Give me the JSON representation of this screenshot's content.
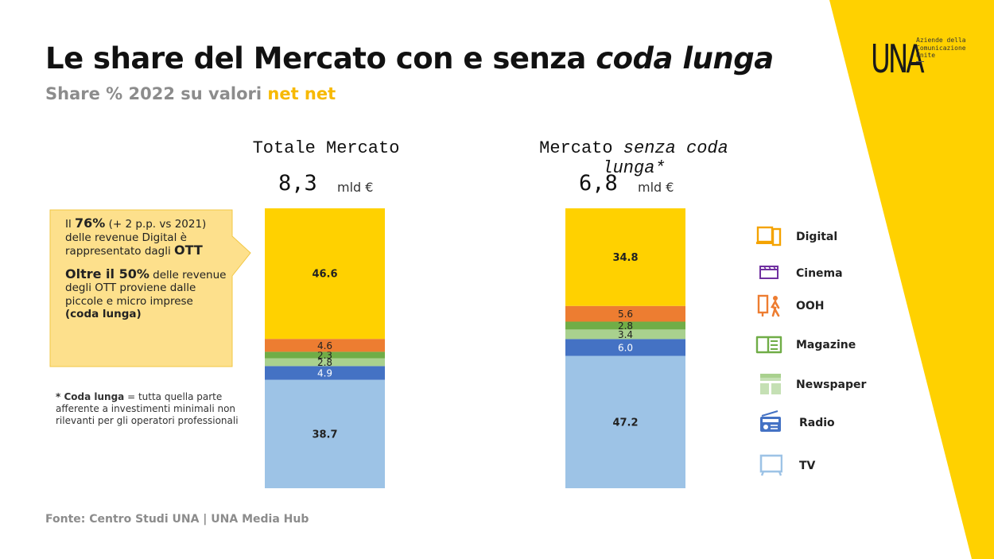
{
  "title_plain": "Le share del Mercato con e senza ",
  "title_italic": "coda lunga",
  "subtitle_plain": "Share % 2022 su valori ",
  "subtitle_highlight": "net net",
  "logo": {
    "mark": "UNA",
    "text": "Aziende della\nComunicazione\nUnite"
  },
  "colors": {
    "accent_yellow": "#ffd100",
    "highlight_text": "#f7b900",
    "callout_fill": "#fde08c"
  },
  "chart_data": [
    {
      "type": "bar",
      "stacked": true,
      "title": "Totale Mercato",
      "total_value": "8,3",
      "total_unit": "mld €",
      "segments": [
        {
          "name": "TV",
          "value": 38.7,
          "label": "38.7",
          "color": "#9dc3e6"
        },
        {
          "name": "Radio",
          "value": 4.9,
          "label": "4.9",
          "color": "#4472c4"
        },
        {
          "name": "Newspaper",
          "value": 2.8,
          "label": "2.8",
          "color": "#a9d18e"
        },
        {
          "name": "Magazine",
          "value": 2.3,
          "label": "2.3",
          "color": "#70ad47"
        },
        {
          "name": "OOH",
          "value": 4.6,
          "label": "4.6",
          "color": "#ed7d31"
        },
        {
          "name": "Digital",
          "value": 46.6,
          "label": "46.6",
          "color": "#ffd100"
        }
      ]
    },
    {
      "type": "bar",
      "stacked": true,
      "title_plain": "Mercato ",
      "title_italic": "senza coda lunga*",
      "total_value": "6,8",
      "total_unit": "mld €",
      "segments": [
        {
          "name": "TV",
          "value": 47.2,
          "label": "47.2",
          "color": "#9dc3e6"
        },
        {
          "name": "Radio",
          "value": 6.0,
          "label": "6.0",
          "color": "#4472c4"
        },
        {
          "name": "Newspaper",
          "value": 3.4,
          "label": "3.4",
          "color": "#a9d18e"
        },
        {
          "name": "Magazine",
          "value": 2.8,
          "label": "2.8",
          "color": "#70ad47"
        },
        {
          "name": "OOH",
          "value": 5.6,
          "label": "5.6",
          "color": "#ed7d31"
        },
        {
          "name": "Digital",
          "value": 34.8,
          "label": "34.8",
          "color": "#ffd100"
        }
      ]
    }
  ],
  "legend": [
    {
      "label": "Digital",
      "icon": "devices-icon",
      "color": "#f4a300"
    },
    {
      "label": "Cinema",
      "icon": "clapperboard-icon",
      "color": "#7030a0"
    },
    {
      "label": "OOH",
      "icon": "billboard-person-icon",
      "color": "#ed7d31"
    },
    {
      "label": "Magazine",
      "icon": "open-book-icon",
      "color": "#70ad47"
    },
    {
      "label": "Newspaper",
      "icon": "newspaper-icon",
      "color": "#a9d18e"
    },
    {
      "label": "Radio",
      "icon": "radio-icon",
      "color": "#4472c4"
    },
    {
      "label": "TV",
      "icon": "tv-icon",
      "color": "#9dc3e6"
    }
  ],
  "callout": {
    "p1_a": "Il ",
    "p1_b": "76%",
    "p1_c": " (+ 2 p.p. vs 2021) delle revenue Digital è rappresentato dagli ",
    "p1_d": "OTT",
    "p2_a": "Oltre il 50%",
    "p2_b": " delle revenue degli OTT proviene dalle piccole e micro imprese ",
    "p2_c": "(coda lunga)"
  },
  "footnote": {
    "a": "* Coda lunga",
    "b": " = tutta quella parte afferente a investimenti minimali non rilevanti per gli operatori professionali"
  },
  "source": "Fonte: Centro Studi UNA | UNA Media Hub"
}
